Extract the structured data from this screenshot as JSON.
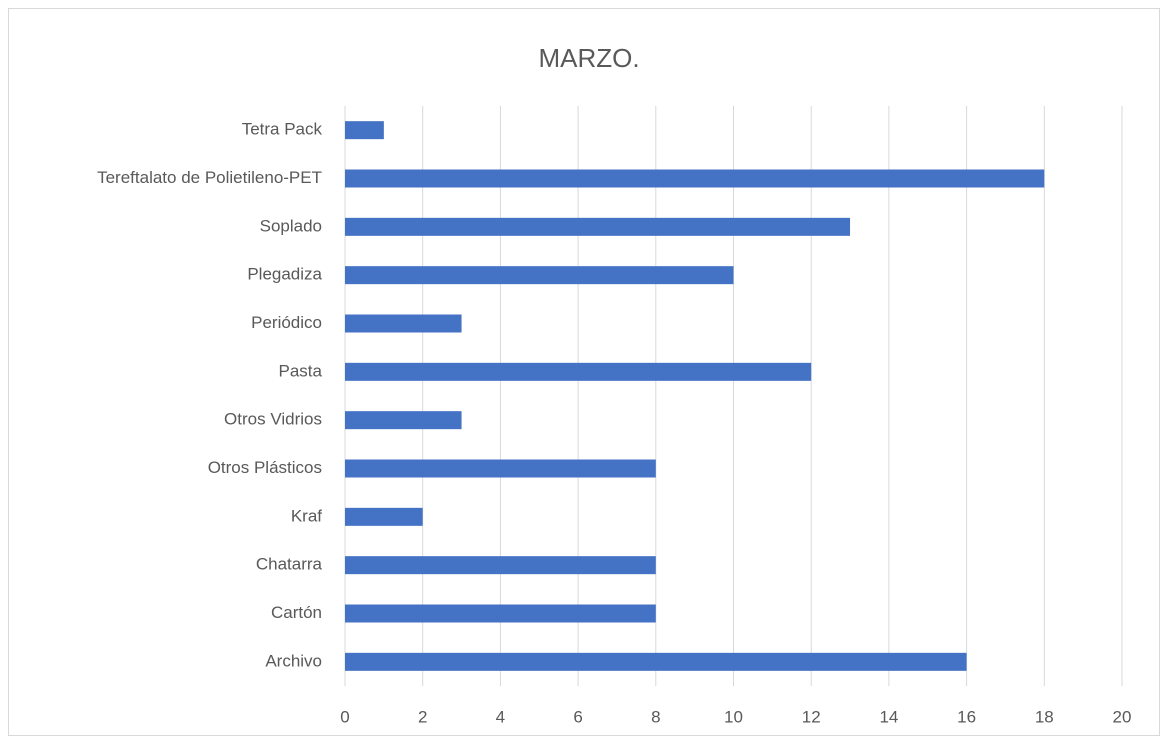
{
  "chart_data": {
    "type": "bar",
    "orientation": "horizontal",
    "title": "MARZO.",
    "categories": [
      "Archivo",
      "Cartón",
      "Chatarra",
      "Kraf",
      "Otros Plásticos",
      "Otros Vidrios",
      "Pasta",
      "Periódico",
      "Plegadiza",
      "Soplado",
      "Tereftalato de Polietileno-PET",
      "Tetra Pack"
    ],
    "values": [
      16,
      8,
      8,
      2,
      8,
      3,
      12,
      3,
      10,
      13,
      18,
      1
    ],
    "color": "#4472c4",
    "xlim": [
      0,
      20
    ],
    "xticks": [
      0,
      2,
      4,
      6,
      8,
      10,
      12,
      14,
      16,
      18,
      20
    ],
    "grid": true
  }
}
